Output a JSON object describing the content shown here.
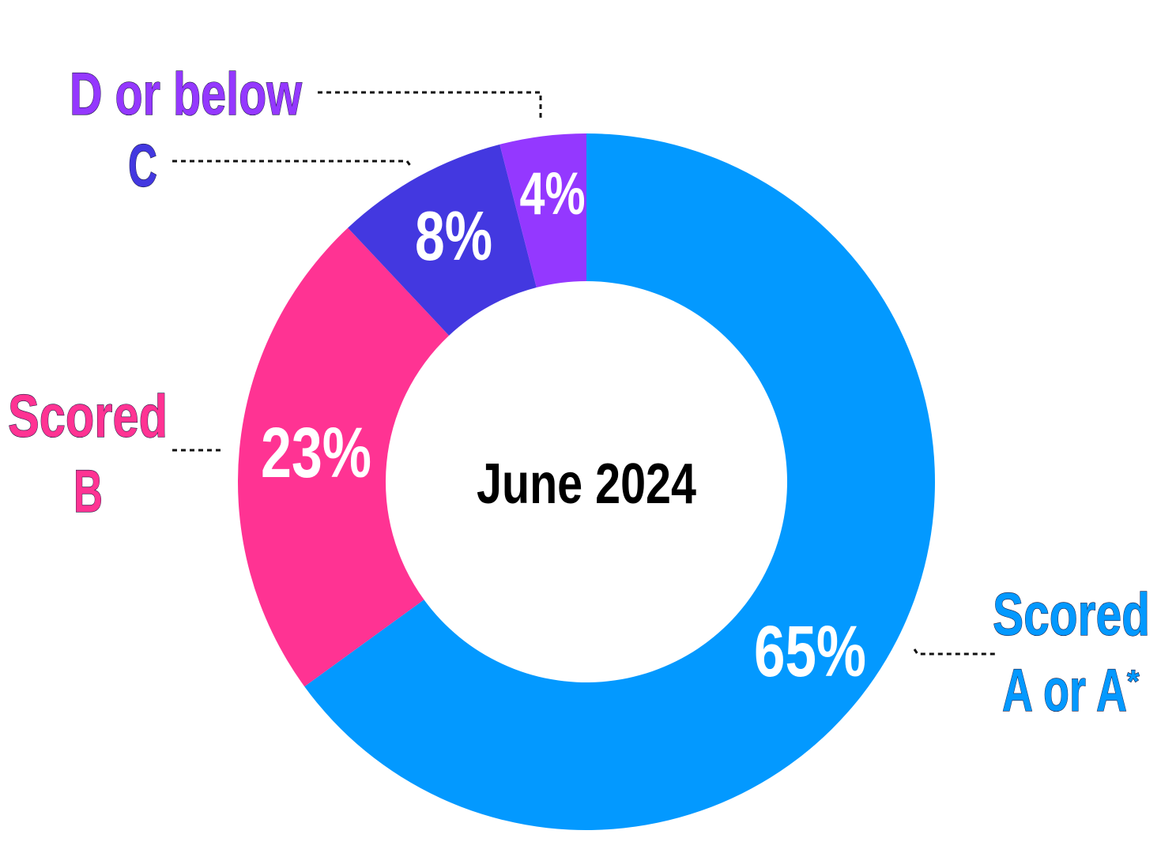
{
  "chart_data": {
    "type": "pie",
    "variant": "donut",
    "center_label": "June 2024",
    "start": "12 o'clock, clockwise",
    "slices": [
      {
        "label_line1": "Scored",
        "label_line2": "A or A",
        "label_sup": "*",
        "value": 65,
        "value_label": "65%",
        "color": "#0399FF"
      },
      {
        "label_line1": "Scored",
        "label_line2": "B",
        "value": 23,
        "value_label": "23%",
        "color": "#FF3393"
      },
      {
        "label_line1": "C",
        "value": 8,
        "value_label": "8%",
        "color": "#4338E0"
      },
      {
        "label_line1": "D or below",
        "value": 4,
        "value_label": "4%",
        "color": "#9438FF"
      }
    ],
    "legend": "none (callout labels with dotted leader lines)"
  }
}
